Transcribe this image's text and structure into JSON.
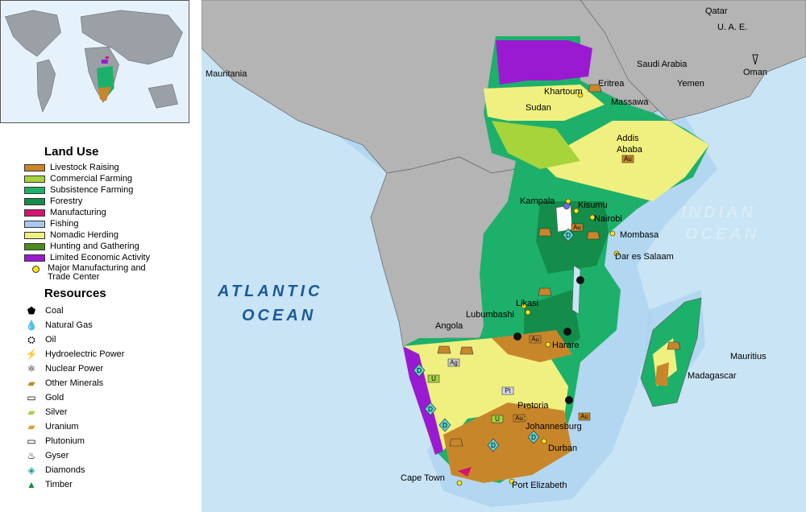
{
  "legend": {
    "land_use_title": "Land Use",
    "land_use": [
      {
        "label": "Livestock Raising",
        "color": "#c8862a"
      },
      {
        "label": "Commercial Farming",
        "color": "#a6d43a"
      },
      {
        "label": "Subsistence Farming",
        "color": "#1db06a"
      },
      {
        "label": "Forestry",
        "color": "#148c4a"
      },
      {
        "label": "Manufacturing",
        "color": "#d4146e"
      },
      {
        "label": "Fishing",
        "color": "#a8c8f0"
      },
      {
        "label": "Nomadic Herding",
        "color": "#f0f080"
      },
      {
        "label": "Hunting and Gathering",
        "color": "#4c8c1c"
      },
      {
        "label": "Limited Economic Activity",
        "color": "#9a1ad2"
      }
    ],
    "major_center_label": "Major Manufacturing and Trade Center",
    "resources_title": "Resources",
    "resources": [
      {
        "label": "Coal",
        "icon": "coal-icon",
        "glyph": "⬟"
      },
      {
        "label": "Natural Gas",
        "icon": "natural-gas-icon",
        "glyph": "💧"
      },
      {
        "label": "Oil",
        "icon": "oil-icon",
        "glyph": "⛭"
      },
      {
        "label": "Hydroelectric Power",
        "icon": "hydroelectric-icon",
        "glyph": "⚡"
      },
      {
        "label": "Nuclear Power",
        "icon": "nuclear-icon",
        "glyph": "⚛"
      },
      {
        "label": "Other Minerals",
        "icon": "other-minerals-icon",
        "glyph": "▰"
      },
      {
        "label": "Gold",
        "icon": "gold-icon",
        "glyph": "▭"
      },
      {
        "label": "Silver",
        "icon": "silver-icon",
        "glyph": "▰"
      },
      {
        "label": "Uranium",
        "icon": "uranium-icon",
        "glyph": "▰"
      },
      {
        "label": "Plutonium",
        "icon": "plutonium-icon",
        "glyph": "▭"
      },
      {
        "label": "Gyser",
        "icon": "gyser-icon",
        "glyph": "♨"
      },
      {
        "label": "Diamonds",
        "icon": "diamond-icon",
        "glyph": "◈"
      },
      {
        "label": "Timber",
        "icon": "timber-icon",
        "glyph": "▲"
      }
    ]
  },
  "map": {
    "oceans": {
      "atlantic_1": "ATLANTIC",
      "atlantic_2": "OCEAN",
      "indian_1": "INDIAN",
      "indian_2": "OCEAN"
    },
    "countries": {
      "mauritania": "Mauritania",
      "saudi": "Saudi Arabia",
      "yemen": "Yemen",
      "oman": "Oman",
      "uae": "U. A. E.",
      "qatar": "Qatar",
      "sudan": "Sudan",
      "eritrea": "Eritrea",
      "angola": "Angola",
      "madagascar": "Madagascar",
      "mauritius": "Mauritius"
    },
    "cities": {
      "khartoum": "Khartoum",
      "massawa": "Massawa",
      "addis1": "Addis",
      "addis2": "Ababa",
      "kampala": "Kampala",
      "kisumu": "Kisumu",
      "nairobi": "Nairobi",
      "mombasa": "Mombasa",
      "dar": "Dar es Salaam",
      "likasi": "Likasi",
      "lubumbashi": "Lubumbashi",
      "harare": "Harare",
      "pretoria": "Pretoria",
      "johannesburg": "Johannesburg",
      "durban": "Durban",
      "capetown": "Cape Town",
      "portelizabeth": "Port Elizabeth"
    },
    "symbols": {
      "au": "Au",
      "ag": "Ag",
      "u": "U",
      "pt": "Pt",
      "d": "D"
    }
  }
}
